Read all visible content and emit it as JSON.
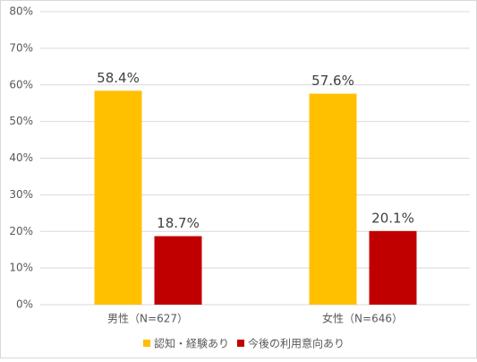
{
  "chart_data": {
    "type": "bar",
    "categories": [
      "男性（N=627）",
      "女性（N=646）"
    ],
    "series": [
      {
        "name": "認知・経験あり",
        "color": "#FFC000",
        "values": [
          58.4,
          57.6
        ],
        "value_labels": [
          "58.4%",
          "57.6%"
        ]
      },
      {
        "name": "今後の利用意向あり",
        "color": "#C00000",
        "values": [
          18.7,
          20.1
        ],
        "value_labels": [
          "18.7%",
          "20.1%"
        ]
      }
    ],
    "ylim": [
      0,
      80
    ],
    "yticks": [
      {
        "value": 0,
        "label": "0%"
      },
      {
        "value": 10,
        "label": "10%"
      },
      {
        "value": 20,
        "label": "20%"
      },
      {
        "value": 30,
        "label": "30%"
      },
      {
        "value": 40,
        "label": "40%"
      },
      {
        "value": 50,
        "label": "50%"
      },
      {
        "value": 60,
        "label": "60%"
      },
      {
        "value": 70,
        "label": "70%"
      },
      {
        "value": 80,
        "label": "80%"
      }
    ],
    "grid": true,
    "legend": "bottom"
  }
}
